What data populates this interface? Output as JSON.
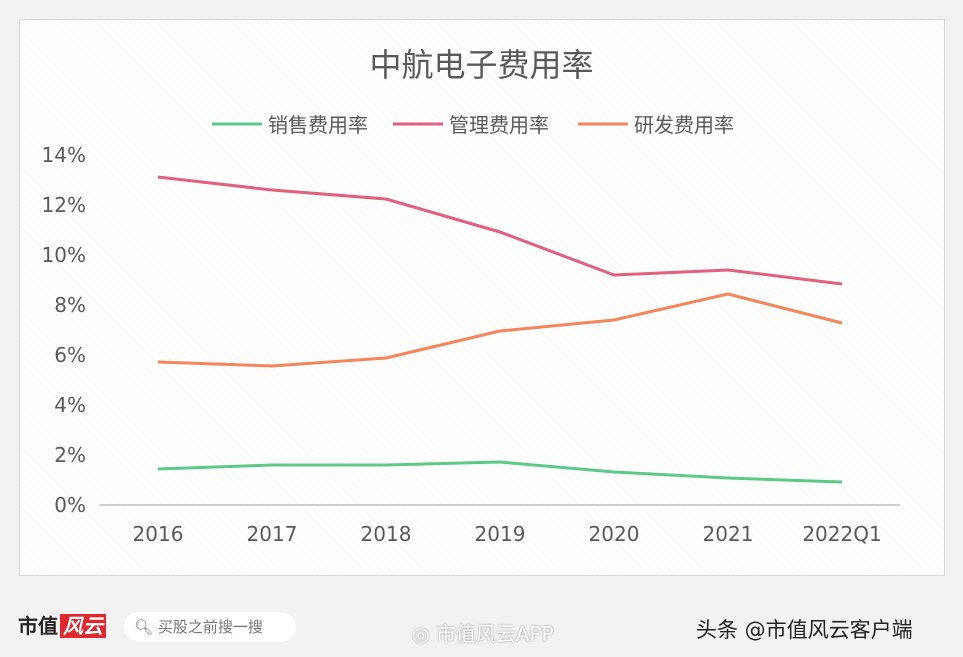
{
  "chart_data": {
    "type": "line",
    "title": "中航电子费用率",
    "categories": [
      "2016",
      "2017",
      "2018",
      "2019",
      "2020",
      "2021",
      "2022Q1"
    ],
    "yticks": [
      "0%",
      "2%",
      "4%",
      "6%",
      "8%",
      "10%",
      "12%",
      "14%"
    ],
    "ylim": [
      0,
      14
    ],
    "yunit": "%",
    "grid": false,
    "legend": "top",
    "series": [
      {
        "name": "销售费用率",
        "color": "#5cc98a",
        "values": [
          1.44,
          1.6,
          1.6,
          1.72,
          1.32,
          1.08,
          0.92
        ]
      },
      {
        "name": "管理费用率",
        "color": "#e0607e",
        "values": [
          13.12,
          12.6,
          12.24,
          10.92,
          9.2,
          9.4,
          8.84
        ]
      },
      {
        "name": "研发费用率",
        "color": "#f5855a",
        "values": [
          5.72,
          5.56,
          5.88,
          6.96,
          7.4,
          8.44,
          7.28
        ]
      }
    ]
  },
  "footer": {
    "logo": "市值风云",
    "logo_a": "市值",
    "logo_b": "风云",
    "search_placeholder": "买股之前搜一搜",
    "weibo": "市值风云APP",
    "toutiao": "头条 @市值风云客户端"
  }
}
